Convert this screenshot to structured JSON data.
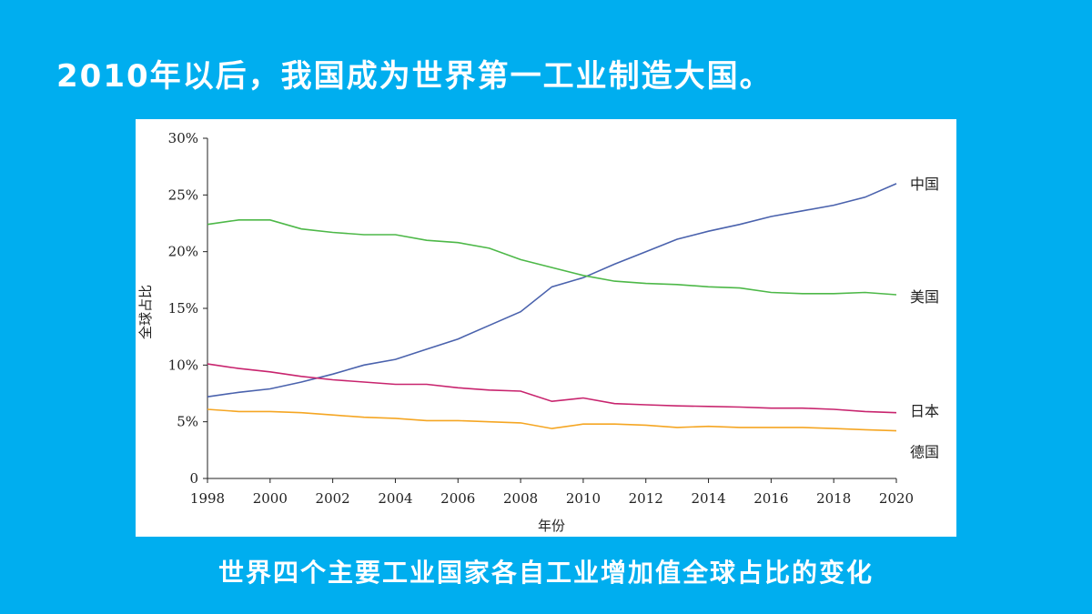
{
  "slide": {
    "title": "2010年以后，我国成为世界第一工业制造大国。",
    "caption": "世界四个主要工业国家各自工业增加值全球占比的变化"
  },
  "chart_data": {
    "type": "line",
    "title": "",
    "xlabel": "年份",
    "ylabel": "全球占比",
    "xlim": [
      1998,
      2020
    ],
    "ylim": [
      0,
      30
    ],
    "x_ticks": [
      "1998",
      "2000",
      "2002",
      "2004",
      "2006",
      "2008",
      "2010",
      "2012",
      "2014",
      "2016",
      "2018",
      "2020"
    ],
    "y_ticks": [
      {
        "value": 0,
        "label": "0"
      },
      {
        "value": 5,
        "label": "5%"
      },
      {
        "value": 10,
        "label": "10%"
      },
      {
        "value": 15,
        "label": "15%"
      },
      {
        "value": 20,
        "label": "20%"
      },
      {
        "value": 25,
        "label": "25%"
      },
      {
        "value": 30,
        "label": "30%"
      }
    ],
    "grid": false,
    "legend": "series labels at right end of lines",
    "x": [
      1998,
      1999,
      2000,
      2001,
      2002,
      2003,
      2004,
      2005,
      2006,
      2007,
      2008,
      2009,
      2010,
      2011,
      2012,
      2013,
      2014,
      2015,
      2016,
      2017,
      2018,
      2019,
      2020
    ],
    "series": [
      {
        "name": "中国",
        "color": "#4A62AD",
        "values": [
          7.2,
          7.6,
          7.9,
          8.5,
          9.2,
          10.0,
          10.5,
          11.4,
          12.3,
          13.5,
          14.7,
          16.9,
          17.7,
          18.9,
          20.0,
          21.1,
          21.8,
          22.4,
          23.1,
          23.6,
          24.1,
          24.8,
          26.0
        ]
      },
      {
        "name": "美国",
        "color": "#4DB848",
        "values": [
          22.4,
          22.8,
          22.8,
          22.0,
          21.7,
          21.5,
          21.5,
          21.0,
          20.8,
          20.3,
          19.3,
          18.6,
          17.9,
          17.4,
          17.2,
          17.1,
          16.9,
          16.8,
          16.4,
          16.3,
          16.3,
          16.4,
          16.2
        ]
      },
      {
        "name": "日本",
        "color": "#C8246E",
        "values": [
          10.1,
          9.7,
          9.4,
          9.0,
          8.7,
          8.5,
          8.3,
          8.3,
          8.0,
          7.8,
          7.7,
          6.8,
          7.1,
          6.6,
          6.5,
          6.4,
          6.35,
          6.3,
          6.2,
          6.2,
          6.1,
          5.9,
          5.8
        ]
      },
      {
        "name": "德国",
        "color": "#F5A623",
        "values": [
          6.1,
          5.9,
          5.9,
          5.8,
          5.6,
          5.4,
          5.3,
          5.1,
          5.1,
          5.0,
          4.9,
          4.4,
          4.8,
          4.8,
          4.7,
          4.5,
          4.6,
          4.5,
          4.5,
          4.5,
          4.4,
          4.3,
          4.2
        ]
      }
    ]
  }
}
